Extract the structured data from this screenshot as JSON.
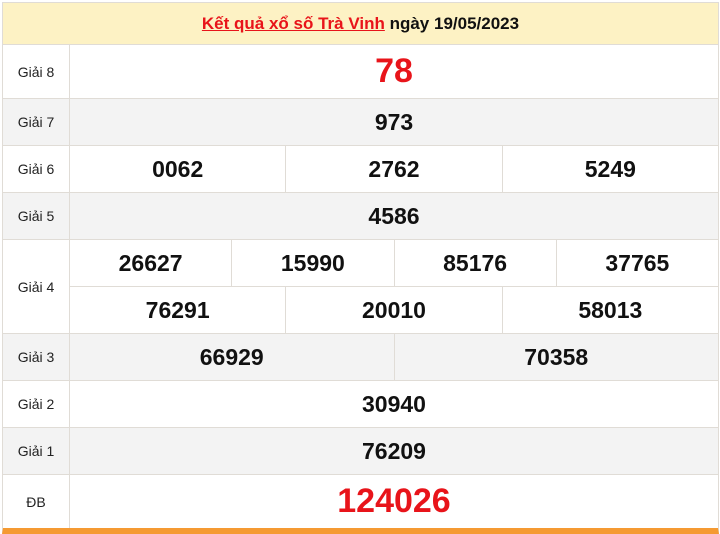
{
  "header": {
    "link_text": "Kết quả xổ số Trà Vinh",
    "date_text": " ngày 19/05/2023"
  },
  "colors": {
    "accent_red": "#e8141a",
    "header_bg": "#fdf2c4",
    "bottom_bar": "#f59a32"
  },
  "prizes": [
    {
      "label": "Giải 8",
      "lines": [
        [
          "78"
        ]
      ],
      "highlight": true
    },
    {
      "label": "Giải 7",
      "lines": [
        [
          "973"
        ]
      ]
    },
    {
      "label": "Giải 6",
      "lines": [
        [
          "0062",
          "2762",
          "5249"
        ]
      ]
    },
    {
      "label": "Giải 5",
      "lines": [
        [
          "4586"
        ]
      ]
    },
    {
      "label": "Giải 4",
      "lines": [
        [
          "26627",
          "15990",
          "85176",
          "37765"
        ],
        [
          "76291",
          "20010",
          "58013"
        ]
      ]
    },
    {
      "label": "Giải 3",
      "lines": [
        [
          "66929",
          "70358"
        ]
      ]
    },
    {
      "label": "Giải 2",
      "lines": [
        [
          "30940"
        ]
      ]
    },
    {
      "label": "Giải 1",
      "lines": [
        [
          "76209"
        ]
      ]
    },
    {
      "label": "ĐB",
      "lines": [
        [
          "124026"
        ]
      ],
      "highlight": true
    }
  ]
}
